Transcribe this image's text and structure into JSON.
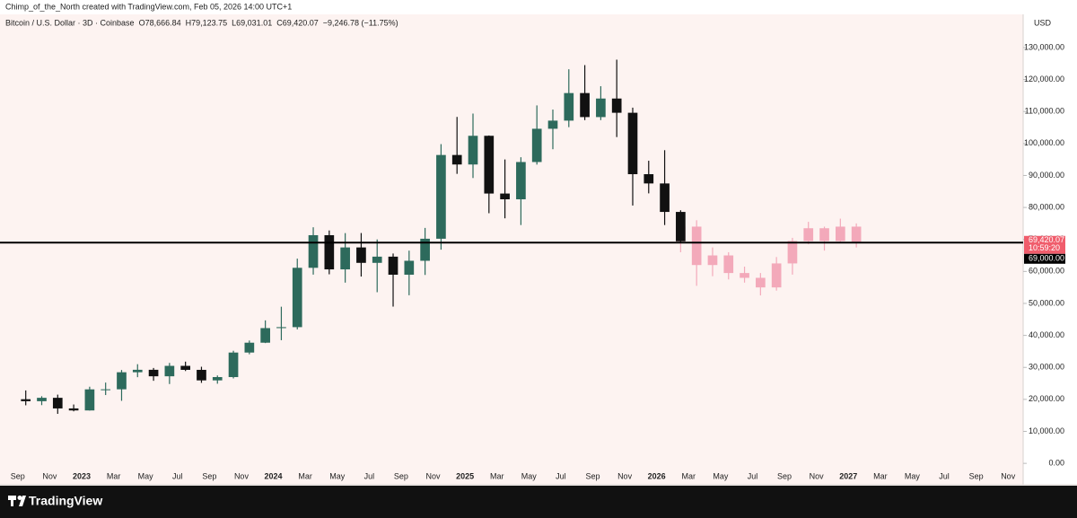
{
  "header": {
    "credit": "Chimp_of_the_North created with TradingView.com, Feb 05, 2026 14:00 UTC+1",
    "symbol": "Bitcoin / U.S. Dollar · 3D · Coinbase",
    "open": "O78,666.84",
    "high": "H79,123.75",
    "low": "L69,031.01",
    "close": "C69,420.07",
    "change": "−9,246.78 (−11.75%)"
  },
  "footer": {
    "brand": "TradingView"
  },
  "chart_data": {
    "type": "candlestick",
    "currency": "USD",
    "candles": {
      "up_color": "#2d6a5c",
      "down_color": "#111111",
      "x": [
        "2022-09",
        "2022-10",
        "2022-11",
        "2022-12",
        "2023-01",
        "2023-02",
        "2023-03",
        "2023-04",
        "2023-05",
        "2023-06",
        "2023-07",
        "2023-08",
        "2023-09",
        "2023-10",
        "2023-11",
        "2023-12",
        "2024-01",
        "2024-02",
        "2024-03",
        "2024-04",
        "2024-05",
        "2024-06",
        "2024-07",
        "2024-08",
        "2024-09",
        "2024-10",
        "2024-11",
        "2024-12",
        "2025-01",
        "2025-02",
        "2025-03",
        "2025-04",
        "2025-05",
        "2025-06",
        "2025-07",
        "2025-08",
        "2025-09",
        "2025-10",
        "2025-11",
        "2025-12",
        "2026-01",
        "2026-02"
      ],
      "open": [
        20050,
        19430,
        20490,
        17170,
        16540,
        23130,
        23150,
        28480,
        29250,
        27220,
        30480,
        29230,
        25940,
        26970,
        34640,
        37720,
        42280,
        42580,
        61130,
        71330,
        60640,
        67500,
        62680,
        64620,
        58970,
        63330,
        70220,
        96400,
        93430,
        102400,
        84350,
        82550,
        94200,
        104600,
        107140,
        115760,
        108250,
        114050,
        109600,
        90400,
        87500,
        78600
      ],
      "high": [
        22800,
        20990,
        21480,
        18400,
        23960,
        25250,
        29190,
        31000,
        29820,
        31400,
        31800,
        30200,
        27480,
        35200,
        38400,
        44700,
        48970,
        64000,
        73800,
        72800,
        71980,
        72000,
        70000,
        65600,
        66500,
        73600,
        99800,
        108300,
        109350,
        102500,
        95000,
        95700,
        111900,
        110600,
        123200,
        124500,
        117900,
        126200,
        111200,
        94600,
        97900,
        79124
      ],
      "low": [
        18150,
        18200,
        15480,
        16260,
        16500,
        21350,
        19550,
        26940,
        25810,
        24800,
        28860,
        25160,
        24900,
        26550,
        34100,
        37600,
        38500,
        41880,
        59000,
        59100,
        56500,
        58400,
        53500,
        49000,
        52550,
        58900,
        66800,
        90500,
        89200,
        78200,
        76600,
        74500,
        93400,
        98200,
        105100,
        107300,
        107300,
        102000,
        80600,
        84400,
        74500,
        69031
      ],
      "close": [
        19430,
        20490,
        17170,
        16540,
        23130,
        23150,
        28480,
        29250,
        27220,
        30480,
        29230,
        25940,
        26970,
        34640,
        37720,
        42280,
        42580,
        61130,
        71330,
        60640,
        67500,
        62680,
        64620,
        58970,
        63330,
        70220,
        96400,
        93430,
        102400,
        84350,
        82550,
        94200,
        104600,
        107140,
        115760,
        108250,
        114050,
        109600,
        90400,
        87500,
        78600,
        69420
      ]
    },
    "projection": {
      "color": "#f3a9ba",
      "x": [
        "2026-02",
        "2026-03",
        "2026-04",
        "2026-05",
        "2026-06",
        "2026-07",
        "2026-08",
        "2026-09",
        "2026-10",
        "2026-11",
        "2026-12",
        "2027-01"
      ],
      "open": [
        69400,
        74000,
        62000,
        65000,
        59500,
        58000,
        55000,
        62500,
        69500,
        73500,
        69500,
        74000
      ],
      "high": [
        78000,
        76000,
        67500,
        66000,
        61500,
        59500,
        64500,
        70500,
        75500,
        74000,
        76500,
        75000
      ],
      "low": [
        66000,
        55500,
        58500,
        57500,
        56500,
        52500,
        54000,
        59000,
        68500,
        66500,
        69000,
        67500
      ],
      "close": [
        74000,
        62000,
        65000,
        59500,
        58000,
        55000,
        62500,
        69500,
        73500,
        69500,
        74000,
        69000
      ]
    },
    "level": {
      "value": 69000,
      "label": "69,000.00"
    },
    "last_price": {
      "value": 69420.07,
      "label": "69,420.07",
      "countdown": "10:59:20"
    },
    "ylim": [
      -6700,
      139800
    ],
    "yticks": [
      {
        "value": 0,
        "label": "0.00"
      },
      {
        "value": 10000,
        "label": "10,000.00"
      },
      {
        "value": 20000,
        "label": "20,000.00"
      },
      {
        "value": 30000,
        "label": "30,000.00"
      },
      {
        "value": 40000,
        "label": "40,000.00"
      },
      {
        "value": 50000,
        "label": "50,000.00"
      },
      {
        "value": 60000,
        "label": "60,000.00"
      },
      {
        "value": 70000,
        "label": "70,000.00"
      },
      {
        "value": 80000,
        "label": "80,000.00"
      },
      {
        "value": 90000,
        "label": "90,000.00"
      },
      {
        "value": 100000,
        "label": "100,000.00"
      },
      {
        "value": 110000,
        "label": "110,000.00"
      },
      {
        "value": 120000,
        "label": "120,000.00"
      },
      {
        "value": 130000,
        "label": "130,000.00"
      }
    ],
    "xlim": [
      "2022-08",
      "2027-12"
    ],
    "xticks": [
      {
        "value": "2022-09",
        "label": "Sep"
      },
      {
        "value": "2022-11",
        "label": "Nov"
      },
      {
        "value": "2023-01",
        "label": "2023"
      },
      {
        "value": "2023-03",
        "label": "Mar"
      },
      {
        "value": "2023-05",
        "label": "May"
      },
      {
        "value": "2023-07",
        "label": "Jul"
      },
      {
        "value": "2023-09",
        "label": "Sep"
      },
      {
        "value": "2023-11",
        "label": "Nov"
      },
      {
        "value": "2024-01",
        "label": "2024"
      },
      {
        "value": "2024-03",
        "label": "Mar"
      },
      {
        "value": "2024-05",
        "label": "May"
      },
      {
        "value": "2024-07",
        "label": "Jul"
      },
      {
        "value": "2024-09",
        "label": "Sep"
      },
      {
        "value": "2024-11",
        "label": "Nov"
      },
      {
        "value": "2025-01",
        "label": "2025"
      },
      {
        "value": "2025-03",
        "label": "Mar"
      },
      {
        "value": "2025-05",
        "label": "May"
      },
      {
        "value": "2025-07",
        "label": "Jul"
      },
      {
        "value": "2025-09",
        "label": "Sep"
      },
      {
        "value": "2025-11",
        "label": "Nov"
      },
      {
        "value": "2026-01",
        "label": "2026"
      },
      {
        "value": "2026-03",
        "label": "Mar"
      },
      {
        "value": "2026-05",
        "label": "May"
      },
      {
        "value": "2026-07",
        "label": "Jul"
      },
      {
        "value": "2026-09",
        "label": "Sep"
      },
      {
        "value": "2026-11",
        "label": "Nov"
      },
      {
        "value": "2027-01",
        "label": "2027"
      },
      {
        "value": "2027-03",
        "label": "Mar"
      },
      {
        "value": "2027-05",
        "label": "May"
      },
      {
        "value": "2027-07",
        "label": "Jul"
      },
      {
        "value": "2027-09",
        "label": "Sep"
      },
      {
        "value": "2027-11",
        "label": "Nov"
      }
    ]
  }
}
